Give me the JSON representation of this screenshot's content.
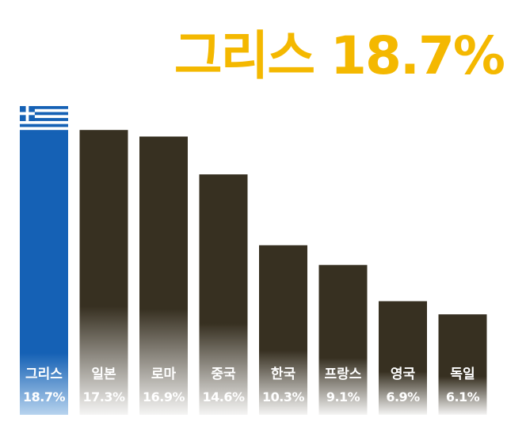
{
  "headline": {
    "text": "그리스 18.7%"
  },
  "colors": {
    "highlight_bar": "#1561b5",
    "other_bar": "#373021",
    "headline": "#f4b800",
    "label": "#ffffff"
  },
  "chart_data": {
    "type": "bar",
    "title": "",
    "xlabel": "",
    "ylabel": "",
    "categories": [
      "그리스",
      "일본",
      "로마",
      "중국",
      "한국",
      "프랑스",
      "영국",
      "독일"
    ],
    "values": [
      18.7,
      17.3,
      16.9,
      14.6,
      10.3,
      9.1,
      6.9,
      6.1
    ],
    "value_labels": [
      "18.7%",
      "17.3%",
      "16.9%",
      "14.6%",
      "10.3%",
      "9.1%",
      "6.9%",
      "6.1%"
    ],
    "highlight_index": 0,
    "highlight_icon": "greece-flag-icon",
    "grid": false,
    "legend": "none"
  }
}
